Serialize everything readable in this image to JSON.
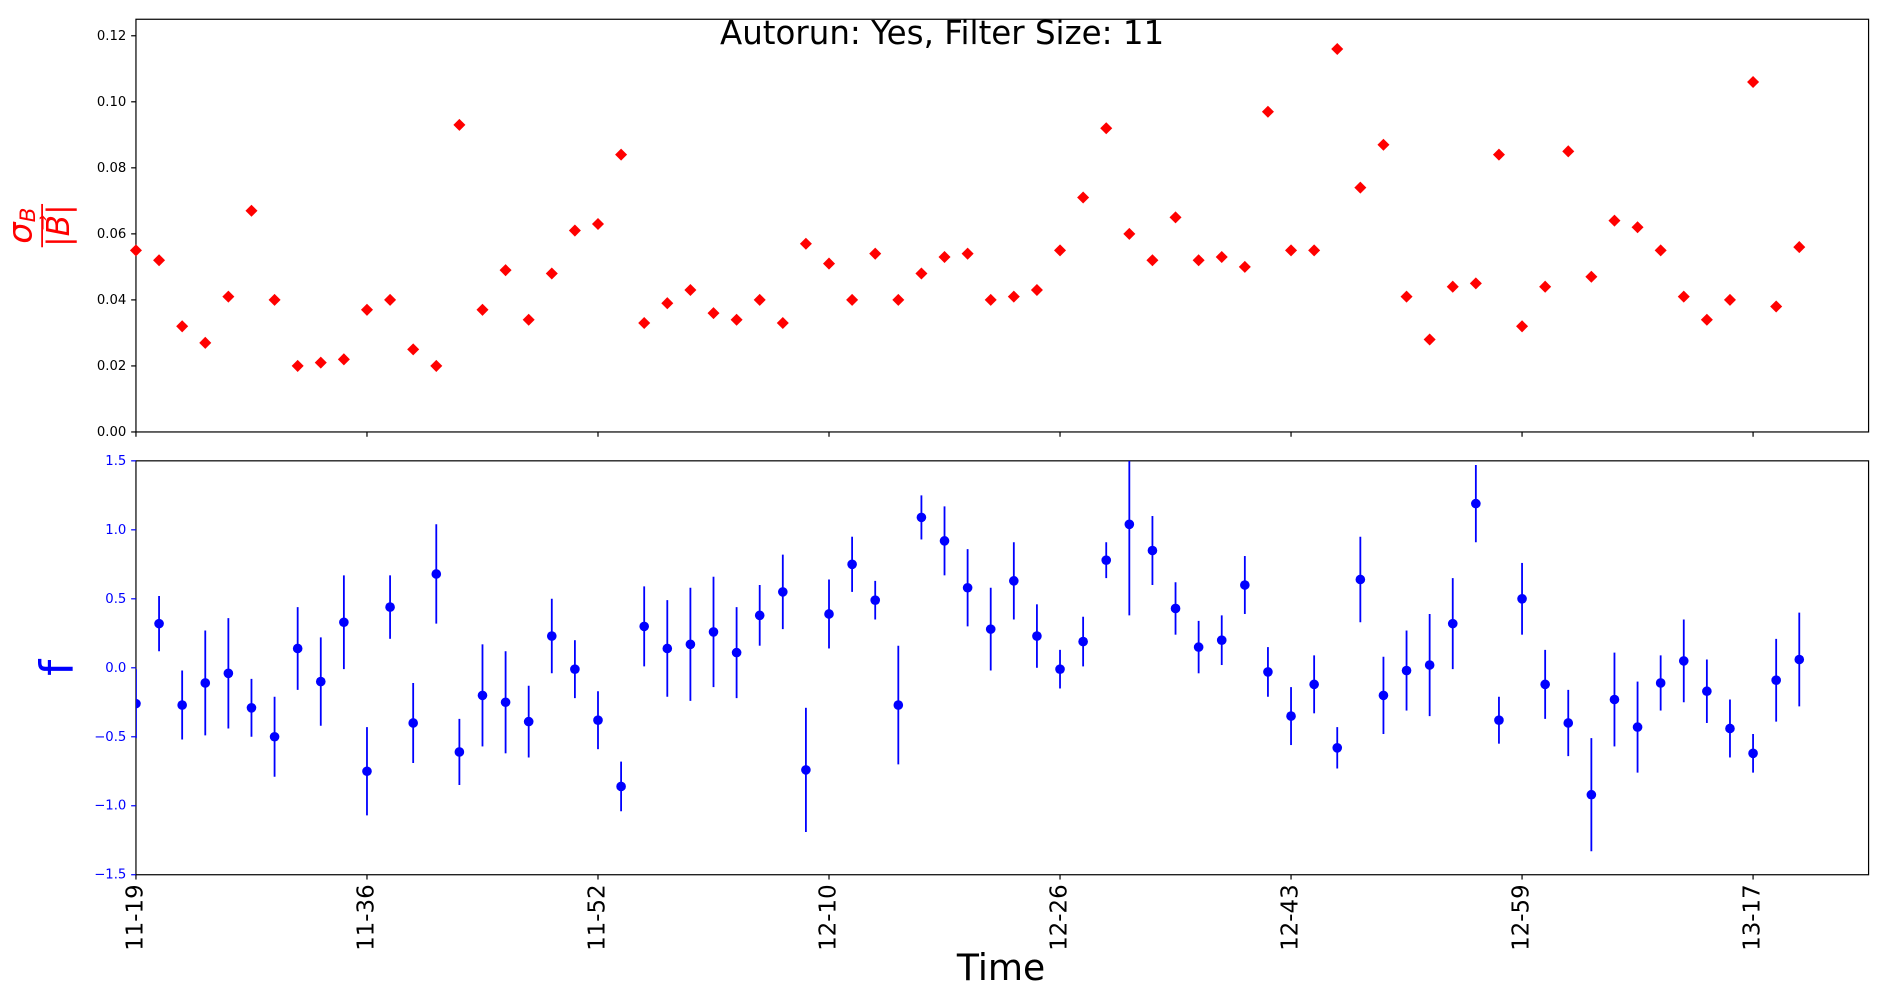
{
  "chart_data": [
    {
      "type": "scatter",
      "title": "Autorun: Yes, Filter Size: 11",
      "y_label": {
        "numerator": "σ",
        "subscript": "B",
        "denominator": "|B⃗|"
      },
      "color": "#ff0000",
      "marker": "diamond",
      "values": [
        0.055,
        0.052,
        0.032,
        0.027,
        0.041,
        0.067,
        0.04,
        0.02,
        0.021,
        0.022,
        0.037,
        0.04,
        0.025,
        0.02,
        0.093,
        0.037,
        0.049,
        0.034,
        0.048,
        0.061,
        0.063,
        0.084,
        0.033,
        0.039,
        0.043,
        0.036,
        0.034,
        0.04,
        0.033,
        0.057,
        0.051,
        0.04,
        0.054,
        0.04,
        0.048,
        0.053,
        0.054,
        0.04,
        0.041,
        0.043,
        0.055,
        0.071,
        0.092,
        0.06,
        0.052,
        0.065,
        0.052,
        0.053,
        0.05,
        0.097,
        0.055,
        0.055,
        0.116,
        0.074,
        0.087,
        0.041,
        0.028,
        0.044,
        0.045,
        0.084,
        0.032,
        0.044,
        0.085,
        0.047,
        0.064,
        0.062,
        0.055,
        0.041,
        0.034,
        0.04,
        0.106,
        0.038,
        0.056
      ],
      "ylim": [
        0,
        0.125
      ],
      "yticks": [
        {
          "value": 0,
          "label": "0.00"
        },
        0.02,
        0.04,
        0.06,
        0.08,
        {
          "value": 0.1,
          "label": "0.10"
        },
        0.12
      ]
    },
    {
      "type": "errorbar",
      "y_label": "f",
      "x_label": "Time",
      "color": "#0000ff",
      "categories": [
        "11-19",
        null,
        null,
        null,
        null,
        null,
        null,
        null,
        null,
        null,
        "11-36",
        null,
        null,
        null,
        null,
        null,
        null,
        null,
        null,
        null,
        "11-52",
        null,
        null,
        null,
        null,
        null,
        null,
        null,
        null,
        null,
        "12-10",
        null,
        null,
        null,
        null,
        null,
        null,
        null,
        null,
        null,
        "12-26",
        null,
        null,
        null,
        null,
        null,
        null,
        null,
        null,
        null,
        "12-43",
        null,
        null,
        null,
        null,
        null,
        null,
        null,
        null,
        null,
        "12-59",
        null,
        null,
        null,
        null,
        null,
        null,
        null,
        null,
        null,
        "13-17",
        null,
        null
      ],
      "values": [
        -0.26,
        0.32,
        -0.27,
        -0.11,
        -0.04,
        -0.29,
        -0.5,
        0.14,
        -0.1,
        0.33,
        -0.75,
        0.44,
        -0.4,
        0.68,
        -0.61,
        -0.2,
        -0.25,
        -0.39,
        0.23,
        -0.01,
        -0.38,
        -0.86,
        0.3,
        0.14,
        0.17,
        0.26,
        0.11,
        0.38,
        0.55,
        -0.74,
        0.39,
        0.75,
        0.49,
        -0.27,
        1.09,
        0.92,
        0.58,
        0.28,
        0.63,
        0.23,
        -0.01,
        0.19,
        0.78,
        1.04,
        0.85,
        0.43,
        0.15,
        0.2,
        0.6,
        -0.03,
        -0.35,
        -0.12,
        -0.58,
        0.64,
        -0.2,
        -0.02,
        0.02,
        0.32,
        1.19,
        -0.38,
        0.5,
        -0.12,
        -0.4,
        -0.92,
        -0.23,
        -0.43,
        -0.11,
        0.05,
        -0.17,
        -0.44,
        -0.62,
        -0.09,
        0.06
      ],
      "errors": [
        0.25,
        0.2,
        0.25,
        0.38,
        0.4,
        0.21,
        0.29,
        0.3,
        0.32,
        0.34,
        0.32,
        0.23,
        0.29,
        0.36,
        0.24,
        0.37,
        0.37,
        0.26,
        0.27,
        0.21,
        0.21,
        0.18,
        0.29,
        0.35,
        0.41,
        0.4,
        0.33,
        0.22,
        0.27,
        0.45,
        0.25,
        0.2,
        0.14,
        0.43,
        0.16,
        0.25,
        0.28,
        0.3,
        0.28,
        0.23,
        0.14,
        0.18,
        0.13,
        0.66,
        0.25,
        0.19,
        0.19,
        0.18,
        0.21,
        0.18,
        0.21,
        0.21,
        0.15,
        0.31,
        0.28,
        0.29,
        0.37,
        0.33,
        0.28,
        0.17,
        0.26,
        0.25,
        0.24,
        0.41,
        0.34,
        0.33,
        0.2,
        0.3,
        0.23,
        0.21,
        0.14,
        0.3,
        0.34
      ],
      "ylim": [
        -1.5,
        1.5
      ],
      "yticks": [
        {
          "value": -1.5,
          "label": "−1.5"
        },
        {
          "value": -1,
          "label": "−1.0"
        },
        {
          "value": -0.5,
          "label": "−0.5"
        },
        {
          "value": 0,
          "label": "0.0"
        },
        0.5,
        {
          "value": 1,
          "label": "1.0"
        },
        1.5
      ]
    }
  ]
}
